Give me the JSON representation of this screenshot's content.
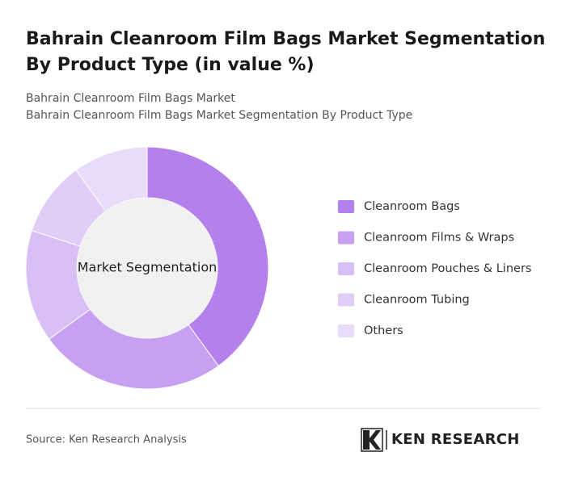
{
  "chart_data": {
    "type": "pie",
    "donut": true,
    "title": [
      "Bahrain Cleanroom Film Bags Market Segmentation",
      "By Product Type (in value %)"
    ],
    "subtitle": [
      "Bahrain Cleanroom Film Bags Market",
      "Bahrain Cleanroom Film Bags Market Segmentation By Product Type"
    ],
    "center_label": "Market Segmentation",
    "categories": [
      "Cleanroom Bags",
      "Cleanroom Films & Wraps",
      "Cleanroom Pouches & Liners",
      "Cleanroom Tubing",
      "Others"
    ],
    "values": [
      40,
      25,
      15,
      10,
      10
    ],
    "colors": [
      "#b380ec",
      "#c7a0f1",
      "#d8bff6",
      "#e1cdf8",
      "#e9dcfa"
    ],
    "source": "Source: Ken Research Analysis",
    "logo": "KEN RESEARCH"
  }
}
